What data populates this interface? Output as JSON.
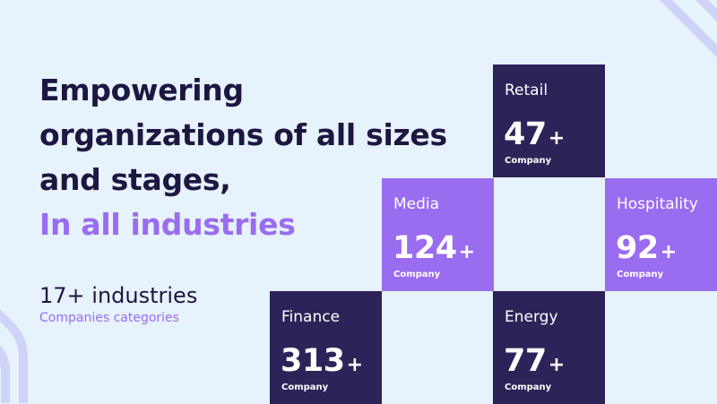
{
  "headline": {
    "line1": "Empowering",
    "line2": "organizations of all sizes",
    "line3": "and stages,",
    "line4": "In all industries"
  },
  "stats": {
    "count": "17+ industries",
    "subtitle": "Companies categories"
  },
  "tiles": [
    {
      "name": "Retail",
      "value": "47",
      "suffix": "+",
      "unit": "Company"
    },
    {
      "name": "Media",
      "value": "124",
      "suffix": "+",
      "unit": "Company"
    },
    {
      "name": "Hospitality",
      "value": "92",
      "suffix": "+",
      "unit": "Company"
    },
    {
      "name": "Finance",
      "value": "313",
      "suffix": "+",
      "unit": "Company"
    },
    {
      "name": "Energy",
      "value": "77",
      "suffix": "+",
      "unit": "Company"
    }
  ],
  "colors": {
    "background": "#e6f2fc",
    "dark_tile": "#2e2358",
    "accent": "#9a6cef",
    "text": "#1d1740"
  }
}
